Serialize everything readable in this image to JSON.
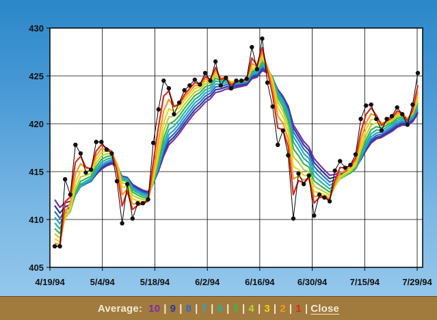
{
  "chart_data": {
    "type": "line",
    "title": "",
    "xlabel": "",
    "ylabel": "",
    "ylim": [
      405,
      430
    ],
    "yticks": [
      405,
      410,
      415,
      420,
      425,
      430
    ],
    "xtick_labels": [
      "4/19/94",
      "5/4/94",
      "5/18/94",
      "6/2/94",
      "6/16/94",
      "6/30/94",
      "7/15/94",
      "7/29/94"
    ],
    "grid": true,
    "series": [
      {
        "values": [
          407.2,
          407.2,
          414.2,
          412.6,
          417.8,
          416.9,
          414.9,
          415.2,
          418.1,
          418.1,
          417.3,
          416.9,
          414.0,
          409.6,
          413.7,
          410.1,
          411.7,
          411.7,
          412.1,
          418.0,
          421.5,
          424.5,
          423.7,
          421.0,
          422.2,
          423.5,
          424.0,
          424.6,
          424.1,
          425.3,
          424.5,
          426.5,
          424.0,
          424.8,
          423.7,
          424.5,
          424.5,
          424.7,
          428.0,
          425.7,
          428.9,
          424.3,
          421.8,
          417.8,
          419.3,
          416.7,
          410.1,
          414.8,
          413.7,
          414.6,
          410.4,
          412.6,
          412.3,
          411.9,
          415.1,
          416.1,
          415.4,
          415.7,
          416.8,
          420.5,
          421.9,
          422.0,
          420.5,
          419.3,
          420.5,
          420.8,
          421.7,
          421.0,
          419.9,
          422.0,
          425.3
        ]
      }
    ],
    "moving_average_colors": {
      "10": "#7d2ea0",
      "9": "#2a3a9c",
      "8": "#2f6bc4",
      "7": "#29a4cf",
      "6": "#22b3a0",
      "5": "#3cb54a",
      "4": "#b5d43a",
      "3": "#f2d21b",
      "2": "#f39a1e",
      "1": "#e0261b"
    }
  },
  "footer": {
    "average_label": "Average:",
    "buttons": [
      {
        "label": "10",
        "color": "#7d2ea0"
      },
      {
        "label": "9",
        "color": "#2a3a9c"
      },
      {
        "label": "8",
        "color": "#2f6bc4"
      },
      {
        "label": "7",
        "color": "#29a4cf"
      },
      {
        "label": "6",
        "color": "#22b3a0"
      },
      {
        "label": "5",
        "color": "#3cb54a"
      },
      {
        "label": "4",
        "color": "#b5d43a"
      },
      {
        "label": "3",
        "color": "#f2d21b"
      },
      {
        "label": "2",
        "color": "#f39a1e"
      },
      {
        "label": "1",
        "color": "#e0261b"
      }
    ],
    "close_label": "Close"
  }
}
